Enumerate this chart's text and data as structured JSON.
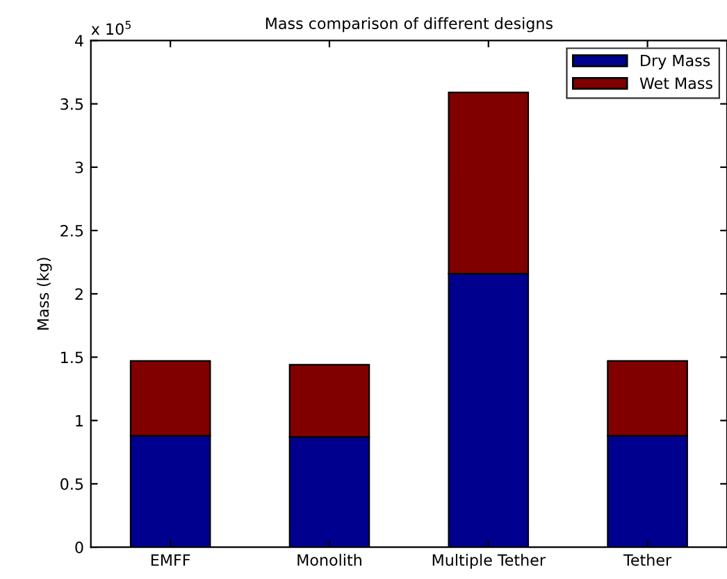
{
  "chart_data": {
    "type": "bar",
    "title": "Mass comparison of different designs",
    "ylabel": "Mass (kg)",
    "categories": [
      "EMFF",
      "Monolith",
      "Multiple Tether",
      "Tether"
    ],
    "stacked": true,
    "series": [
      {
        "name": "Dry Mass",
        "color": "#00008f",
        "values": [
          0.88,
          0.87,
          2.16,
          0.88
        ]
      },
      {
        "name": "Wet Mass",
        "color": "#800000",
        "values": [
          0.59,
          0.57,
          1.43,
          0.59
        ]
      }
    ],
    "ylim": [
      0,
      4
    ],
    "yticks": [
      0,
      0.5,
      1,
      1.5,
      2,
      2.5,
      3,
      3.5,
      4
    ],
    "annotations": [
      "x 10$^{5}$"
    ],
    "grid": false,
    "legend": "top right"
  }
}
